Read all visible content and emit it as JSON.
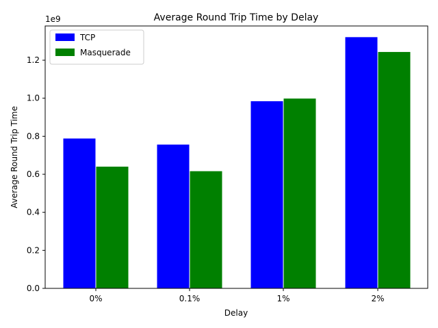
{
  "chart_data": {
    "type": "bar",
    "title": "Average Round Trip Time by Delay",
    "xlabel": "Delay",
    "ylabel": "Average Round Trip Time",
    "y_offset_label": "1e9",
    "categories": [
      "0%",
      "0.1%",
      "1%",
      "2%"
    ],
    "series": [
      {
        "name": "TCP",
        "color": "#0000ff",
        "values": [
          0.79,
          0.758,
          0.986,
          1.323
        ]
      },
      {
        "name": "Masquerade",
        "color": "#008000",
        "values": [
          0.642,
          0.618,
          1.0,
          1.245
        ]
      }
    ],
    "ylim": [
      0,
      1.38
    ],
    "yticks": [
      0.0,
      0.2,
      0.4,
      0.6,
      0.8,
      1.0,
      1.2
    ],
    "ytick_labels": [
      "0.0",
      "0.2",
      "0.4",
      "0.6",
      "0.8",
      "1.0",
      "1.2"
    ],
    "legend_position": "upper-left",
    "grid": false
  }
}
